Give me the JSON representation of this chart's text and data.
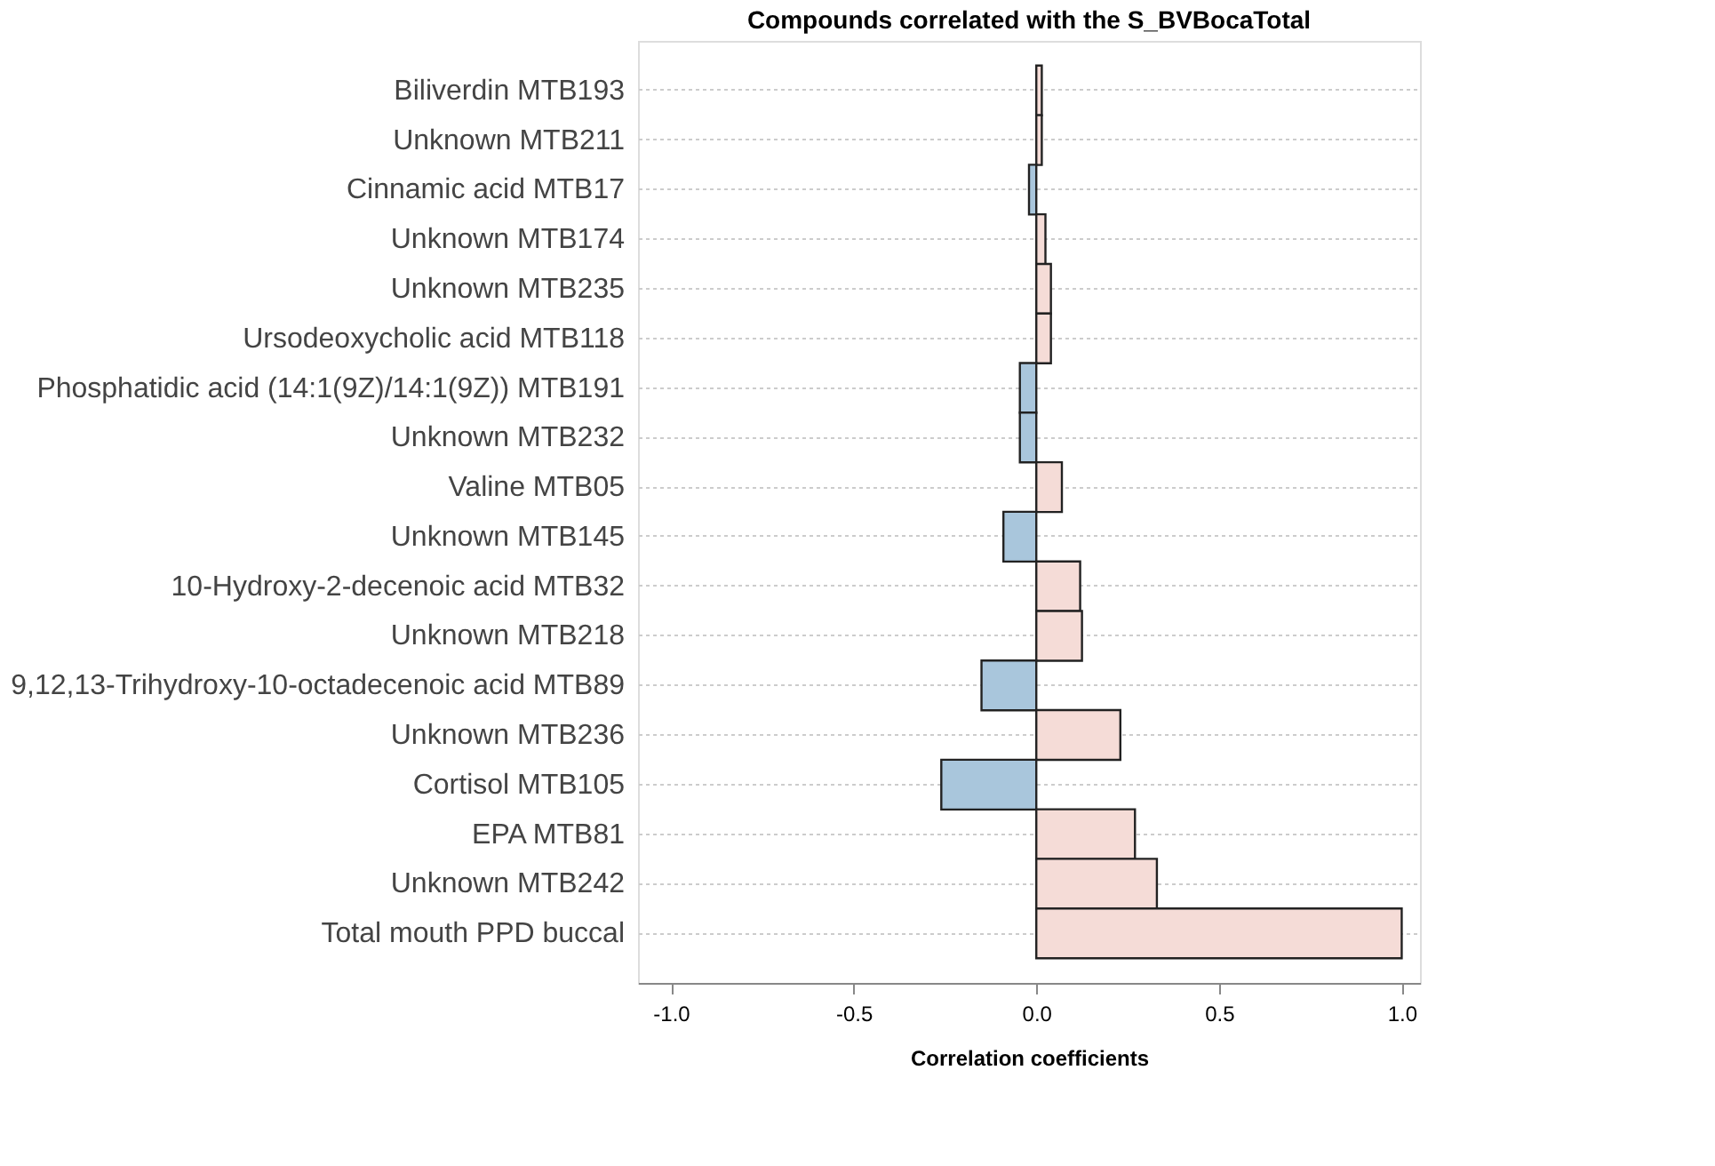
{
  "chart_data": {
    "type": "bar",
    "orientation": "horizontal",
    "title": "Compounds correlated with the S_BVBocaTotal",
    "xlabel": "Correlation coefficients",
    "categories": [
      "Biliverdin MTB193",
      "Unknown MTB211",
      "Cinnamic acid MTB17",
      "Unknown MTB174",
      "Unknown MTB235",
      "Ursodeoxycholic acid MTB118",
      "Phosphatidic acid (14:1(9Z)/14:1(9Z)) MTB191",
      "Unknown MTB232",
      "Valine MTB05",
      "Unknown MTB145",
      "10-Hydroxy-2-decenoic acid MTB32",
      "Unknown MTB218",
      "9,12,13-Trihydroxy-10-octadecenoic acid MTB89",
      "Unknown MTB236",
      "Cortisol MTB105",
      "EPA MTB81",
      "Unknown MTB242",
      "Total mouth PPD buccal"
    ],
    "values": [
      0.015,
      0.015,
      -0.02,
      0.025,
      0.04,
      0.04,
      -0.045,
      -0.045,
      0.07,
      -0.09,
      0.12,
      0.125,
      -0.15,
      0.23,
      -0.26,
      0.27,
      0.33,
      1.0
    ],
    "colors": [
      "#f5dcd7",
      "#f5dcd7",
      "#a9c6dc",
      "#f5dcd7",
      "#f5dcd7",
      "#f5dcd7",
      "#a9c6dc",
      "#a9c6dc",
      "#f5dcd7",
      "#a9c6dc",
      "#f5dcd7",
      "#f5dcd7",
      "#a9c6dc",
      "#f5dcd7",
      "#a9c6dc",
      "#f5dcd7",
      "#f5dcd7",
      "#f5dcd7"
    ],
    "xlim": [
      -1.09,
      1.05
    ],
    "xticks": [
      {
        "value": -1,
        "label": "-1.0"
      },
      {
        "value": -0.5,
        "label": "-0.5"
      },
      {
        "value": 0,
        "label": "0.0"
      },
      {
        "value": 0.5,
        "label": "0.5"
      },
      {
        "value": 1,
        "label": "1.0"
      }
    ],
    "grid": "y"
  }
}
